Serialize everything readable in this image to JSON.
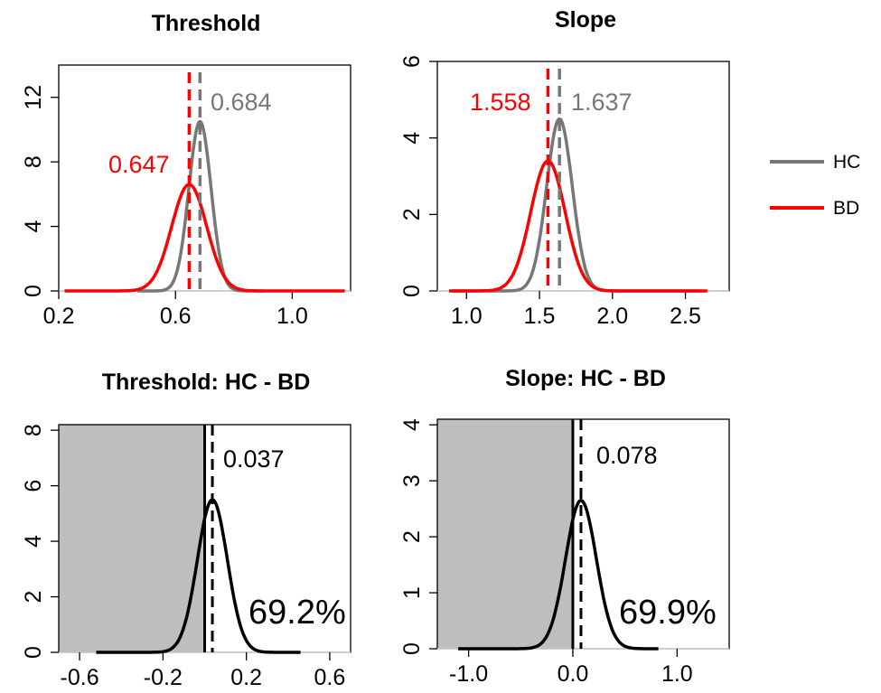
{
  "legend": {
    "entries": [
      {
        "label": "HC",
        "color": "#777777"
      },
      {
        "label": "BD",
        "color": "#ff0000"
      }
    ]
  },
  "chart_data": [
    {
      "type": "line",
      "title": "Threshold",
      "xlim": [
        0.2,
        1.2
      ],
      "ylim": [
        0,
        14
      ],
      "xticks": [
        "0.2",
        "0.6",
        "1.0"
      ],
      "yticks": [
        "0",
        "4",
        "8",
        "12"
      ],
      "series": [
        {
          "name": "HC",
          "color": "#777777",
          "mean": 0.684,
          "peak": 10.5,
          "sd": 0.038,
          "range": [
            0.47,
            0.9
          ]
        },
        {
          "name": "BD",
          "color": "#ff0000",
          "mean": 0.647,
          "peak": 6.6,
          "sd": 0.06,
          "range": [
            0.22,
            1.18
          ]
        }
      ],
      "annotations": [
        {
          "text": "0.684",
          "color": "#777777",
          "x": 0.684
        },
        {
          "text": "0.647",
          "color": "#ff0000",
          "x": 0.647
        }
      ]
    },
    {
      "type": "line",
      "title": "Slope",
      "xlim": [
        0.8,
        2.8
      ],
      "ylim": [
        0,
        6
      ],
      "xticks": [
        "1.0",
        "1.5",
        "2.0",
        "2.5"
      ],
      "yticks": [
        "0",
        "2",
        "4",
        "6"
      ],
      "series": [
        {
          "name": "HC",
          "color": "#777777",
          "mean": 1.637,
          "peak": 4.5,
          "sd": 0.088,
          "range": [
            0.9,
            2.6
          ]
        },
        {
          "name": "BD",
          "color": "#ff0000",
          "mean": 1.558,
          "peak": 3.4,
          "sd": 0.118,
          "range": [
            0.88,
            2.65
          ]
        }
      ],
      "annotations": [
        {
          "text": "1.637",
          "color": "#777777",
          "x": 1.637
        },
        {
          "text": "1.558",
          "color": "#ff0000",
          "x": 1.558
        }
      ]
    },
    {
      "type": "area",
      "title": "Threshold: HC - BD",
      "xlim": [
        -0.7,
        0.7
      ],
      "ylim": [
        0,
        8.2
      ],
      "xticks": [
        "-0.6",
        "-0.2",
        "0.2",
        "0.6"
      ],
      "yticks": [
        "0",
        "2",
        "4",
        "6",
        "8"
      ],
      "series": [
        {
          "color": "#000000",
          "mean": 0.037,
          "peak": 5.5,
          "sd": 0.072,
          "range": [
            -0.52,
            0.46
          ]
        }
      ],
      "shaded_below": 0,
      "annotations": [
        {
          "text": "0.037",
          "color": "#000000",
          "x": 0.037
        },
        {
          "text": "69.2%",
          "color": "#000000"
        }
      ]
    },
    {
      "type": "area",
      "title": "Slope: HC - BD",
      "xlim": [
        -1.3,
        1.5
      ],
      "ylim": [
        0,
        4.1
      ],
      "xticks": [
        "-1.0",
        "0.0",
        "1.0"
      ],
      "yticks": [
        "0",
        "1",
        "2",
        "3",
        "4"
      ],
      "series": [
        {
          "color": "#000000",
          "mean": 0.078,
          "peak": 2.65,
          "sd": 0.148,
          "range": [
            -1.1,
            0.82
          ]
        }
      ],
      "shaded_below": 0,
      "annotations": [
        {
          "text": "0.078",
          "color": "#000000",
          "x": 0.078
        },
        {
          "text": "69.9%",
          "color": "#000000"
        }
      ]
    }
  ]
}
